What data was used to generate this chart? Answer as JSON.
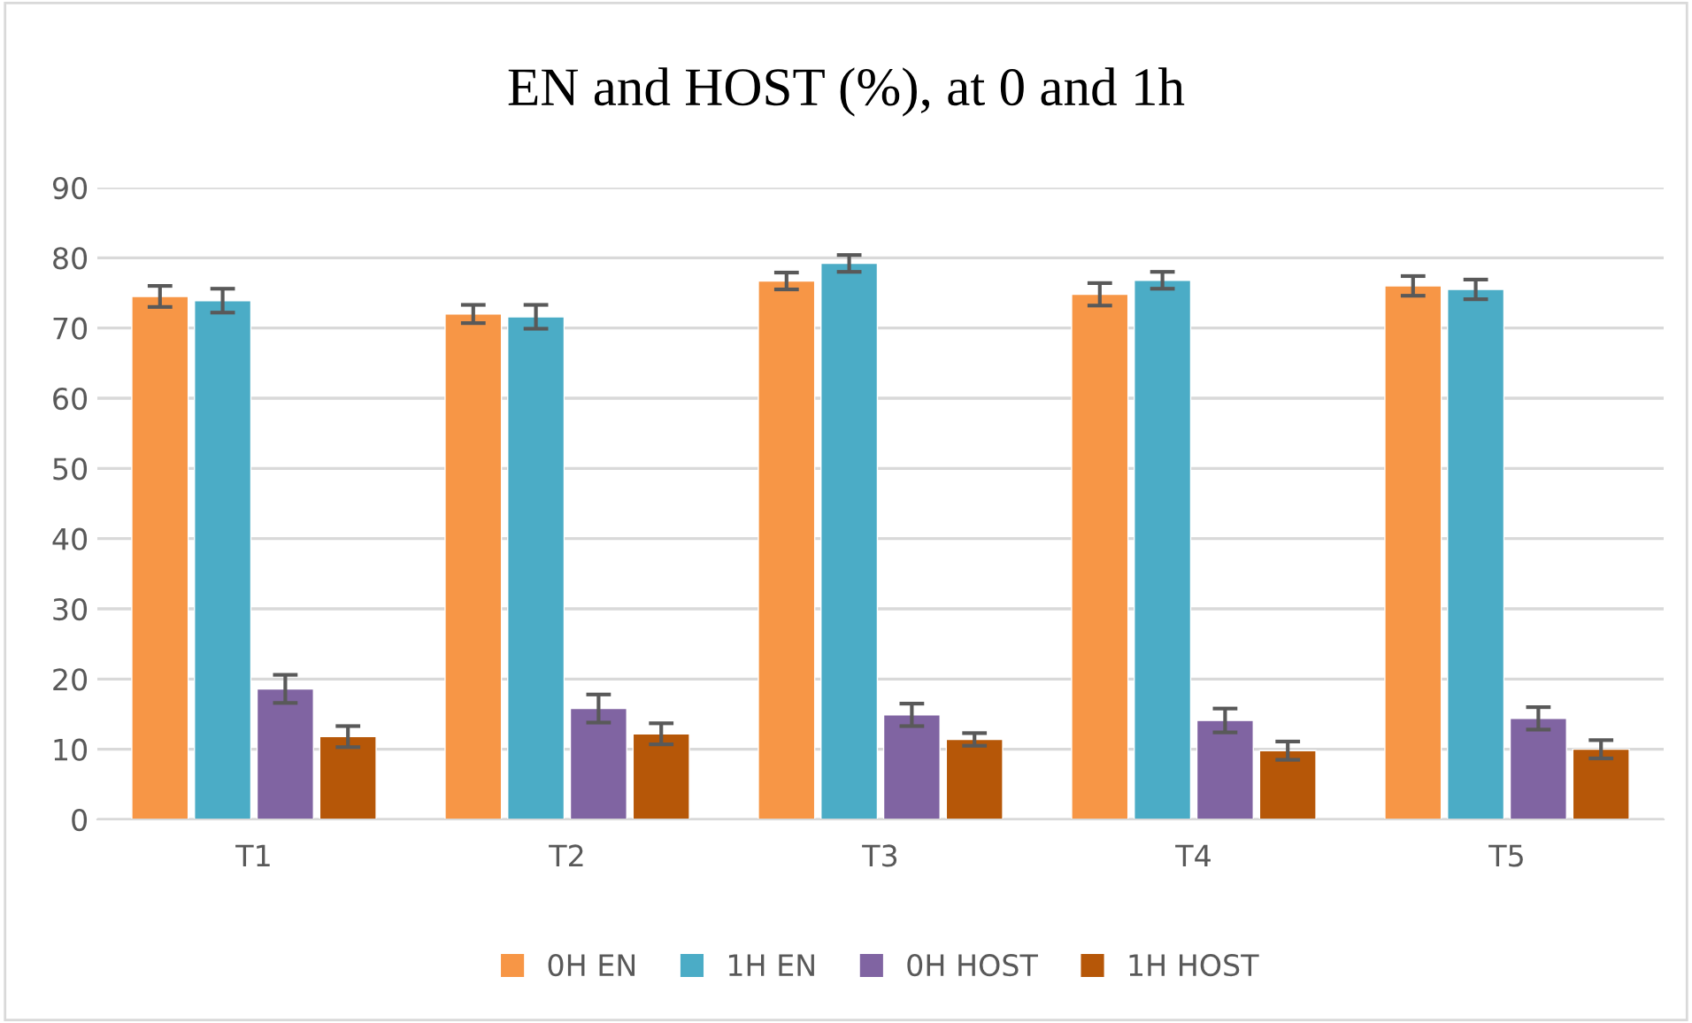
{
  "chart_data": {
    "type": "bar",
    "title": "EN and HOST (%), at 0 and 1h",
    "categories": [
      "T1",
      "T2",
      "T3",
      "T4",
      "T5"
    ],
    "series": [
      {
        "name": "0H EN",
        "color": "#f79646",
        "values": [
          74.5,
          72.0,
          76.7,
          74.8,
          76.0
        ],
        "errors": [
          1.5,
          1.3,
          1.2,
          1.6,
          1.4
        ]
      },
      {
        "name": "1H EN",
        "color": "#4bacc6",
        "values": [
          73.9,
          71.6,
          79.2,
          76.8,
          75.5
        ],
        "errors": [
          1.7,
          1.7,
          1.2,
          1.2,
          1.4
        ]
      },
      {
        "name": "0H HOST",
        "color": "#8064a2",
        "values": [
          18.6,
          15.8,
          14.9,
          14.1,
          14.4
        ],
        "errors": [
          2.0,
          2.0,
          1.6,
          1.7,
          1.6
        ]
      },
      {
        "name": "1H HOST",
        "color": "#b65708",
        "values": [
          11.8,
          12.2,
          11.4,
          9.8,
          10.0
        ],
        "errors": [
          1.5,
          1.5,
          0.9,
          1.3,
          1.3
        ]
      }
    ],
    "ylim": [
      0,
      90
    ],
    "yticks": [
      0,
      10,
      20,
      30,
      40,
      50,
      60,
      70,
      80,
      90
    ],
    "grid": "y",
    "legend": "bottom"
  }
}
